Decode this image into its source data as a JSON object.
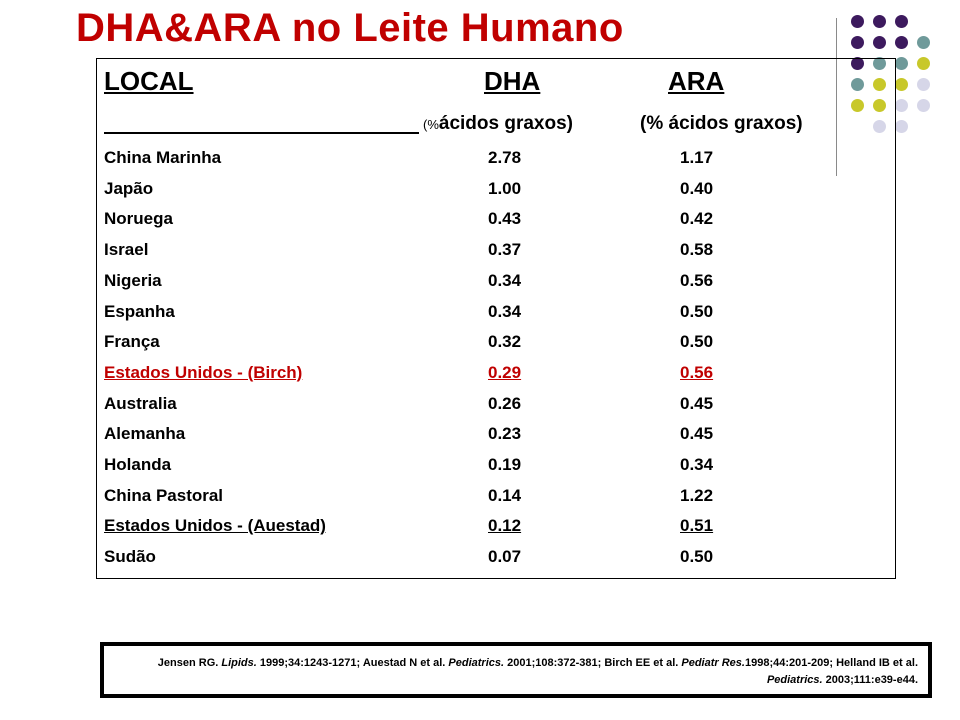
{
  "title": "DHA&ARA no Leite Humano",
  "headers": {
    "local": "LOCAL",
    "dha": "DHA",
    "ara": "ARA"
  },
  "subheaders": {
    "dha_prefix": "(%",
    "dha_rest": "ácidos graxos)",
    "ara": "(% ácidos graxos)"
  },
  "rows": [
    {
      "local": "China Marinha",
      "dha": "2.78",
      "ara": "1.17",
      "style": "normal"
    },
    {
      "local": "Japão",
      "dha": "1.00",
      "ara": "0.40",
      "style": "normal"
    },
    {
      "local": "Noruega",
      "dha": "0.43",
      "ara": "0.42",
      "style": "normal"
    },
    {
      "local": "Israel",
      "dha": "0.37",
      "ara": "0.58",
      "style": "normal"
    },
    {
      "local": "Nigeria",
      "dha": "0.34",
      "ara": "0.56",
      "style": "normal"
    },
    {
      "local": "Espanha",
      "dha": "0.34",
      "ara": "0.50",
      "style": "normal"
    },
    {
      "local": "França",
      "dha": "0.32",
      "ara": "0.50",
      "style": "normal"
    },
    {
      "local": "Estados Unidos - (Birch)",
      "dha": "0.29",
      "ara": "0.56",
      "style": "highlight-red"
    },
    {
      "local": "Australia",
      "dha": "0.26",
      "ara": "0.45",
      "style": "normal"
    },
    {
      "local": "Alemanha",
      "dha": "0.23",
      "ara": "0.45",
      "style": "normal"
    },
    {
      "local": "Holanda",
      "dha": "0.19",
      "ara": "0.34",
      "style": "normal"
    },
    {
      "local": "China Pastoral",
      "dha": "0.14",
      "ara": "1.22",
      "style": "normal"
    },
    {
      "local": "Estados Unidos - (Auestad)",
      "dha": "0.12",
      "ara": "0.51",
      "style": "underlined"
    },
    {
      "local": "Sudão",
      "dha": "0.07",
      "ara": "0.50",
      "style": "normal"
    }
  ],
  "reference": {
    "p1": "Jensen RG. ",
    "i1": "Lipids.",
    "p2": " 1999;34:1243-1271; Auestad N et al. ",
    "i2": "Pediatrics.",
    "p3": " 2001;108:372-381; Birch EE et al. ",
    "i3": "Pediatr Res.",
    "p4": "1998;44:201-209; Helland IB et al. ",
    "i4": "Pediatrics.",
    "p5": " 2003;111:e39-e44."
  },
  "colors": {
    "title": "#c00000",
    "highlight_row": "#c00000",
    "dot_purple": "#3d1a5e",
    "dot_teal": "#6f9a9a",
    "dot_yellow": "#c8c82a",
    "dot_lavender": "#d6d6e8"
  },
  "decoration": {
    "dot_grid": [
      [
        "dot_purple",
        "dot_purple",
        "dot_purple"
      ],
      [
        "dot_purple",
        "dot_purple",
        "dot_purple",
        "dot_teal"
      ],
      [
        "dot_purple",
        "dot_teal",
        "dot_teal",
        "dot_yellow"
      ],
      [
        "dot_teal",
        "dot_yellow",
        "dot_yellow",
        "dot_lavender"
      ],
      [
        "dot_yellow",
        "dot_yellow",
        "dot_lavender",
        "dot_lavender"
      ],
      [
        "dot_lavender",
        "dot_lavender"
      ]
    ]
  }
}
